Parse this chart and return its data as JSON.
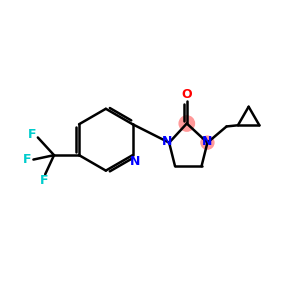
{
  "background_color": "#ffffff",
  "bond_color": "#000000",
  "bond_width": 1.8,
  "N_color": "#0000ff",
  "O_color": "#ff0000",
  "F_color": "#00cccc",
  "highlight_color": "#ff9999",
  "figsize": [
    3.0,
    3.0
  ],
  "dpi": 100,
  "xlim": [
    0,
    10
  ],
  "ylim": [
    0,
    10
  ]
}
